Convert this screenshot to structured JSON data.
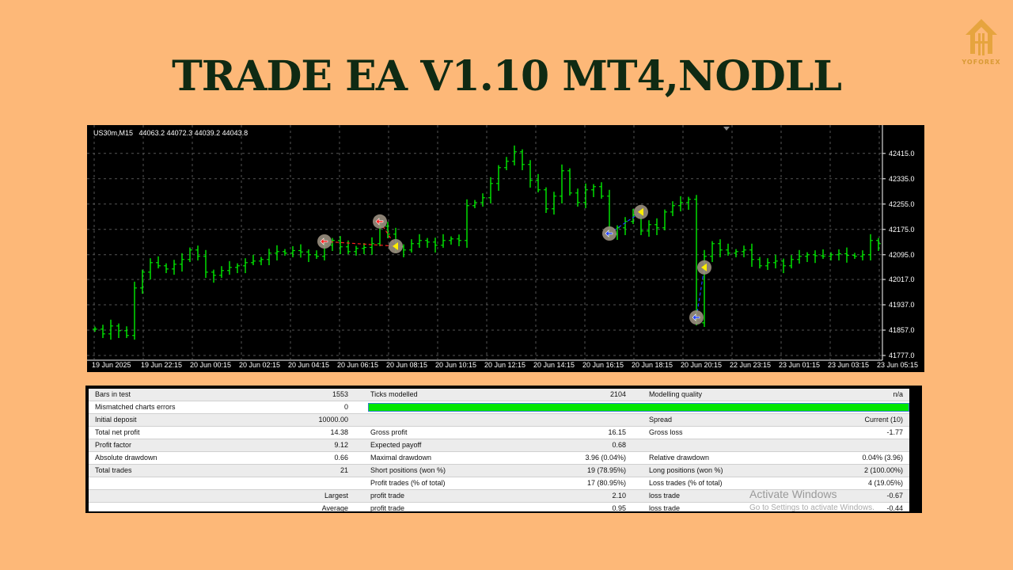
{
  "title": "TRADE EA V1.10 MT4,NODLL",
  "logo": {
    "text": "YOFOREX",
    "color": "#e0a23c"
  },
  "chart": {
    "symbol_label": "US30m,M15",
    "ohlc_label": "44063.2 44072.3 44039.2 44043.8"
  },
  "chart_data": {
    "type": "ohlc",
    "bar_color": "#00ff00",
    "background": "#000000",
    "grid": true,
    "ylim": [
      41777.0,
      42455.0
    ],
    "yticks": [
      "42415.0",
      "42335.0",
      "42255.0",
      "42175.0",
      "42095.0",
      "42017.0",
      "41937.0",
      "41857.0",
      "41777.0"
    ],
    "ytick_values": [
      42415.0,
      42335.0,
      42255.0,
      42175.0,
      42095.0,
      42017.0,
      41937.0,
      41857.0,
      41777.0
    ],
    "xticks": [
      "19 Jun 2025",
      "19 Jun 22:15",
      "20 Jun 00:15",
      "20 Jun 02:15",
      "20 Jun 04:15",
      "20 Jun 06:15",
      "20 Jun 08:15",
      "20 Jun 10:15",
      "20 Jun 12:15",
      "20 Jun 14:15",
      "20 Jun 16:15",
      "20 Jun 18:15",
      "20 Jun 20:15",
      "22 Jun 23:15",
      "23 Jun 01:15",
      "23 Jun 03:15",
      "23 Jun 05:15"
    ],
    "closes": [
      41860,
      41845,
      41870,
      41855,
      41840,
      41990,
      42040,
      42070,
      42060,
      42050,
      42065,
      42080,
      42110,
      42090,
      42040,
      42030,
      42045,
      42055,
      42060,
      42070,
      42075,
      42080,
      42100,
      42105,
      42100,
      42108,
      42104,
      42095,
      42090,
      42125,
      42140,
      42120,
      42105,
      42115,
      42118,
      42130,
      42185,
      42160,
      42120,
      42110,
      42130,
      42140,
      42135,
      42125,
      42140,
      42145,
      42140,
      42250,
      42260,
      42275,
      42320,
      42370,
      42390,
      42420,
      42380,
      42330,
      42300,
      42240,
      42280,
      42360,
      42290,
      42260,
      42300,
      42310,
      42280,
      42160,
      42180,
      42200,
      42220,
      42170,
      42190,
      42180,
      42230,
      42250,
      42260,
      42270,
      41880,
      42090,
      42130,
      42110,
      42100,
      42105,
      42110,
      42080,
      42060,
      42070,
      42075,
      42060,
      42080,
      42090,
      42095,
      42092,
      42090,
      42095,
      42098,
      42093,
      42090,
      42095,
      42140,
      42130
    ],
    "trades": [
      {
        "bar": 29,
        "price": 42137,
        "type": "buy",
        "color": "#ff2020"
      },
      {
        "bar": 36,
        "price": 42200,
        "type": "buy",
        "color": "#ff2020"
      },
      {
        "bar": 38,
        "price": 42122,
        "type": "close",
        "color": "#ffee00"
      },
      {
        "bar": 65,
        "price": 42162,
        "type": "sell",
        "color": "#2040ff"
      },
      {
        "bar": 69,
        "price": 42230,
        "type": "close",
        "color": "#ffee00"
      },
      {
        "bar": 76,
        "price": 41897,
        "type": "sell",
        "color": "#2040ff"
      },
      {
        "bar": 77,
        "price": 42055,
        "type": "close",
        "color": "#ffee00"
      }
    ]
  },
  "report": {
    "rows": [
      {
        "c1": "Bars in test",
        "v1": "1553",
        "c2": "Ticks modelled",
        "v2": "2104",
        "c3": "Modelling quality",
        "v3": "n/a"
      },
      {
        "c1": "Mismatched charts errors",
        "v1": "0",
        "c2": "",
        "v2": "",
        "c3": "",
        "v3": ""
      },
      {
        "c1": "Initial deposit",
        "v1": "10000.00",
        "c2": "",
        "v2": "",
        "c3": "Spread",
        "v3": "Current (10)"
      },
      {
        "c1": "Total net profit",
        "v1": "14.38",
        "c2": "Gross profit",
        "v2": "16.15",
        "c3": "Gross loss",
        "v3": "-1.77"
      },
      {
        "c1": "Profit factor",
        "v1": "9.12",
        "c2": "Expected payoff",
        "v2": "0.68",
        "c3": "",
        "v3": ""
      },
      {
        "c1": "Absolute drawdown",
        "v1": "0.66",
        "c2": "Maximal drawdown",
        "v2": "3.96 (0.04%)",
        "c3": "Relative drawdown",
        "v3": "0.04% (3.96)"
      },
      {
        "c1": "Total trades",
        "v1": "21",
        "c2": "Short positions (won %)",
        "v2": "19 (78.95%)",
        "c3": "Long positions (won %)",
        "v3": "2 (100.00%)"
      },
      {
        "c1": "",
        "v1": "",
        "c2": "Profit trades (% of total)",
        "v2": "17 (80.95%)",
        "c3": "Loss trades (% of total)",
        "v3": "4 (19.05%)"
      },
      {
        "c1": "",
        "v1": "Largest",
        "c2": "profit trade",
        "v2": "2.10",
        "c3": "loss trade",
        "v3": "-0.67"
      },
      {
        "c1": "",
        "v1": "Average",
        "c2": "profit trade",
        "v2": "0.95",
        "c3": "loss trade",
        "v3": "-0.44"
      }
    ],
    "quality_bar_percent": 100,
    "quality_bar_color": "#00e600",
    "watermark": "Activate Windows",
    "watermark_sub": "Go to Settings to activate Windows."
  }
}
